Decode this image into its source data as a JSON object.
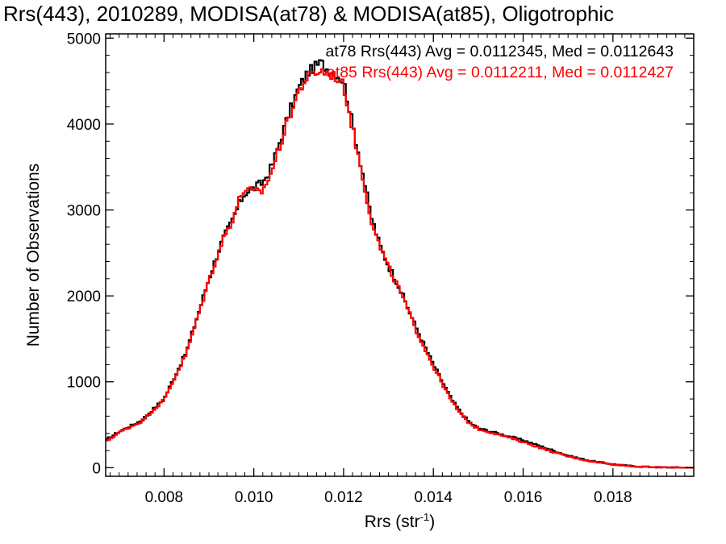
{
  "chart_data": {
    "type": "line",
    "title": "Rrs(443), 2010289, MODISA(at78) & MODISA(at85), Oligotrophic",
    "xlabel": "Rrs (str",
    "xlabel_sup": "-1",
    "xlabel_end": ")",
    "ylabel": "Number of Observations",
    "xlim": [
      0.0067,
      0.0198
    ],
    "ylim": [
      -100,
      5050
    ],
    "x_ticks": [
      0.008,
      0.01,
      0.012,
      0.014,
      0.016,
      0.018
    ],
    "x_tick_labels": [
      "0.008",
      "0.010",
      "0.012",
      "0.014",
      "0.016",
      "0.018"
    ],
    "y_ticks": [
      0,
      1000,
      2000,
      3000,
      4000,
      5000
    ],
    "y_tick_labels": [
      "0",
      "1000",
      "2000",
      "3000",
      "4000",
      "5000"
    ],
    "step": true,
    "legend_position": "top",
    "series": [
      {
        "name": "at78",
        "color": "#000000",
        "legend": "at78 Rrs(443) Avg = 0.0112345, Med = 0.0112643",
        "x": [
          0.0067,
          0.007,
          0.0075,
          0.008,
          0.0085,
          0.009,
          0.0093,
          0.0095,
          0.0097,
          0.0098,
          0.01,
          0.0102,
          0.0104,
          0.0106,
          0.0108,
          0.011,
          0.0112,
          0.0114,
          0.0115,
          0.0116,
          0.0118,
          0.012,
          0.0122,
          0.0124,
          0.0126,
          0.0128,
          0.013,
          0.0132,
          0.0134,
          0.0136,
          0.0138,
          0.014,
          0.0142,
          0.0144,
          0.0146,
          0.0148,
          0.015,
          0.0155,
          0.016,
          0.0165,
          0.017,
          0.0175,
          0.018,
          0.0185,
          0.019,
          0.0198
        ],
        "y": [
          320,
          420,
          550,
          800,
          1350,
          2200,
          2650,
          2850,
          3100,
          3200,
          3250,
          3320,
          3500,
          3830,
          4150,
          4420,
          4600,
          4680,
          4720,
          4650,
          4600,
          4500,
          4000,
          3500,
          2950,
          2600,
          2350,
          2150,
          1900,
          1650,
          1420,
          1200,
          1000,
          800,
          650,
          530,
          460,
          390,
          320,
          230,
          140,
          80,
          40,
          15,
          5,
          0
        ]
      },
      {
        "name": "at85",
        "color": "#ff0000",
        "legend": "at85 Rrs(443) Avg = 0.0112211, Med = 0.0112427",
        "x": [
          0.0067,
          0.007,
          0.0075,
          0.008,
          0.0085,
          0.009,
          0.0093,
          0.0095,
          0.0097,
          0.0098,
          0.01,
          0.0102,
          0.0104,
          0.0106,
          0.0108,
          0.011,
          0.0112,
          0.0114,
          0.0115,
          0.0116,
          0.0118,
          0.012,
          0.0122,
          0.0124,
          0.0126,
          0.0128,
          0.013,
          0.0132,
          0.0134,
          0.0136,
          0.0138,
          0.014,
          0.0142,
          0.0144,
          0.0146,
          0.0148,
          0.015,
          0.0155,
          0.016,
          0.0165,
          0.017,
          0.0175,
          0.018,
          0.0185,
          0.019,
          0.0198
        ],
        "y": [
          300,
          410,
          540,
          790,
          1330,
          2180,
          2640,
          2860,
          3150,
          3250,
          3200,
          3220,
          3450,
          3780,
          4100,
          4380,
          4550,
          4600,
          4620,
          4600,
          4560,
          4450,
          3950,
          3450,
          2920,
          2580,
          2330,
          2120,
          1880,
          1620,
          1400,
          1180,
          980,
          780,
          630,
          520,
          450,
          380,
          300,
          210,
          130,
          75,
          38,
          14,
          5,
          0
        ]
      }
    ]
  }
}
